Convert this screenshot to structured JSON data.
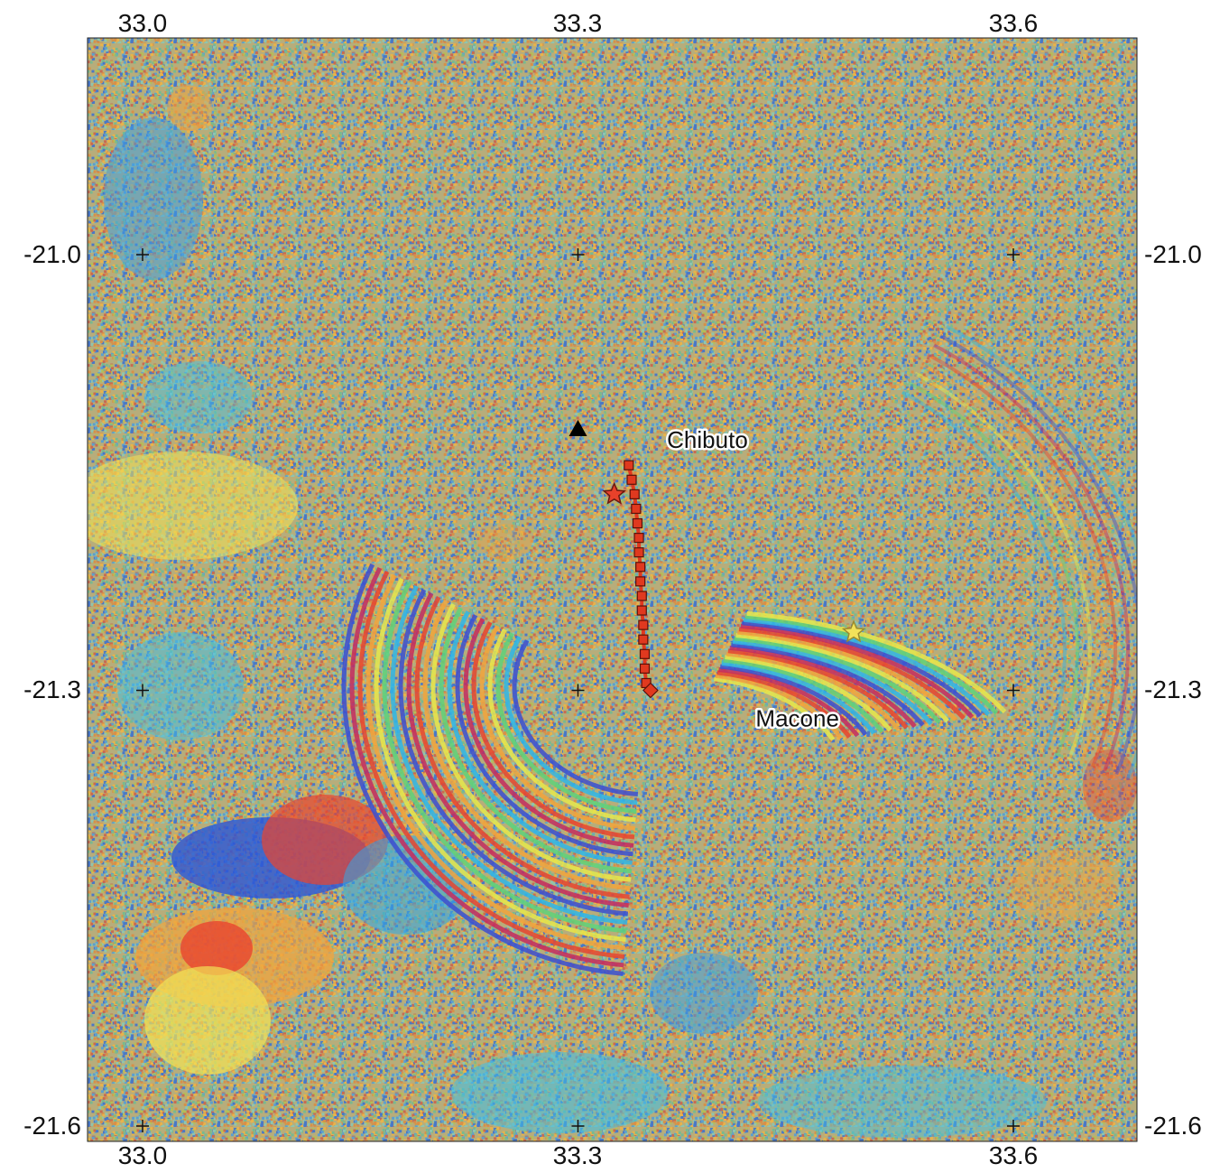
{
  "map": {
    "colors": {
      "noise": [
        "#e9b34a",
        "#79b98f",
        "#5c9fcf",
        "#c96a51",
        "#b5be58",
        "#4a78c6",
        "#8ec5b0",
        "#d89048"
      ],
      "fringe": [
        "#3b4fd1",
        "#2fb6e8",
        "#5fd27a",
        "#e8e84b",
        "#f2a43c",
        "#e8452f",
        "#c42b5f"
      ],
      "trace": "#e0391f",
      "epicenter_red": "#e8412a",
      "epicenter_yellow": "#f3e25a",
      "volcano": "#000000"
    },
    "axes": {
      "lon_ticks": [
        "33.0",
        "33.3",
        "33.6"
      ],
      "lat_ticks": [
        "-21.0",
        "-21.3",
        "-21.6"
      ]
    },
    "places": [
      {
        "name": "Chibuto",
        "lon": 33.38,
        "lat": -21.13
      },
      {
        "name": "Macone",
        "lon": 33.41,
        "lat": -21.31
      }
    ],
    "markers": {
      "triangle": {
        "lon": 33.3,
        "lat": -21.12,
        "icon": "triangle-icon"
      },
      "red_star": {
        "lon": 33.325,
        "lat": -21.165,
        "icon": "star-icon"
      },
      "yellow_star": {
        "lon": 33.49,
        "lat": -21.26,
        "icon": "star-icon"
      },
      "fault_end": {
        "lon": 33.35,
        "lat": -21.3,
        "icon": "diamond-icon"
      }
    },
    "fault_trace": [
      [
        33.335,
        -21.145
      ],
      [
        33.337,
        -21.155
      ],
      [
        33.339,
        -21.165
      ],
      [
        33.34,
        -21.175
      ],
      [
        33.341,
        -21.185
      ],
      [
        33.342,
        -21.195
      ],
      [
        33.342,
        -21.205
      ],
      [
        33.343,
        -21.215
      ],
      [
        33.343,
        -21.225
      ],
      [
        33.344,
        -21.235
      ],
      [
        33.344,
        -21.245
      ],
      [
        33.345,
        -21.255
      ],
      [
        33.345,
        -21.265
      ],
      [
        33.346,
        -21.275
      ],
      [
        33.346,
        -21.285
      ],
      [
        33.347,
        -21.295
      ]
    ]
  }
}
